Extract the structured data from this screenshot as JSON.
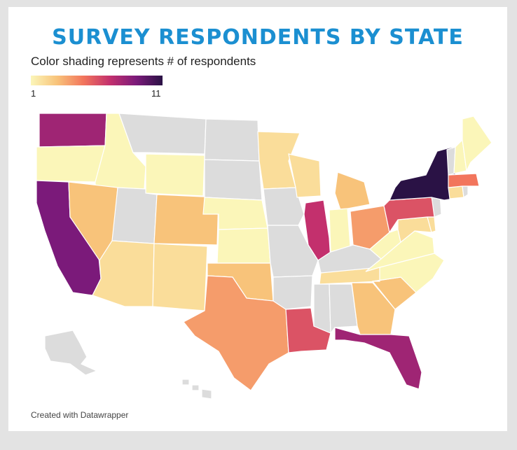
{
  "header": {
    "title": "SURVEY RESPONDENTS BY STATE",
    "subtitle": "Color shading represents # of respondents"
  },
  "legend": {
    "min_label": "1",
    "max_label": "11",
    "min": 1,
    "max": 11,
    "colors": [
      "#fbf6b9",
      "#f8c37a",
      "#f2755c",
      "#c3306d",
      "#7b1a7a",
      "#2a1245"
    ]
  },
  "footer": {
    "credit": "Created with Datawrapper"
  },
  "colors": {
    "title": "#1b8fd1",
    "no_data": "#dcdcdc"
  },
  "chart_data": {
    "type": "choropleth",
    "scale": "sequential",
    "states": [
      {
        "code": "WA",
        "value": 8
      },
      {
        "code": "OR",
        "value": 1
      },
      {
        "code": "CA",
        "value": 9
      },
      {
        "code": "ID",
        "value": 1
      },
      {
        "code": "NV",
        "value": 3
      },
      {
        "code": "MT",
        "value": null
      },
      {
        "code": "WY",
        "value": 1
      },
      {
        "code": "UT",
        "value": null
      },
      {
        "code": "AZ",
        "value": 2
      },
      {
        "code": "CO",
        "value": 3
      },
      {
        "code": "NM",
        "value": 2
      },
      {
        "code": "ND",
        "value": null
      },
      {
        "code": "SD",
        "value": null
      },
      {
        "code": "NE",
        "value": 1
      },
      {
        "code": "KS",
        "value": 1
      },
      {
        "code": "OK",
        "value": 3
      },
      {
        "code": "TX",
        "value": 4
      },
      {
        "code": "MN",
        "value": 2
      },
      {
        "code": "IA",
        "value": null
      },
      {
        "code": "MO",
        "value": null
      },
      {
        "code": "AR",
        "value": null
      },
      {
        "code": "LA",
        "value": 6
      },
      {
        "code": "WI",
        "value": 2
      },
      {
        "code": "IL",
        "value": 7
      },
      {
        "code": "MI",
        "value": 3
      },
      {
        "code": "IN",
        "value": 1
      },
      {
        "code": "OH",
        "value": 4
      },
      {
        "code": "KY",
        "value": null
      },
      {
        "code": "TN",
        "value": 2
      },
      {
        "code": "MS",
        "value": null
      },
      {
        "code": "AL",
        "value": null
      },
      {
        "code": "GA",
        "value": 3
      },
      {
        "code": "FL",
        "value": 8
      },
      {
        "code": "SC",
        "value": 3
      },
      {
        "code": "NC",
        "value": 1
      },
      {
        "code": "VA",
        "value": 1
      },
      {
        "code": "WV",
        "value": 1
      },
      {
        "code": "MD",
        "value": 2
      },
      {
        "code": "DE",
        "value": 2
      },
      {
        "code": "PA",
        "value": 6
      },
      {
        "code": "NJ",
        "value": null
      },
      {
        "code": "NY",
        "value": 11
      },
      {
        "code": "CT",
        "value": 2
      },
      {
        "code": "RI",
        "value": null
      },
      {
        "code": "MA",
        "value": 5
      },
      {
        "code": "VT",
        "value": null
      },
      {
        "code": "NH",
        "value": 1
      },
      {
        "code": "ME",
        "value": 1
      },
      {
        "code": "AK",
        "value": null
      },
      {
        "code": "HI",
        "value": null
      }
    ]
  }
}
